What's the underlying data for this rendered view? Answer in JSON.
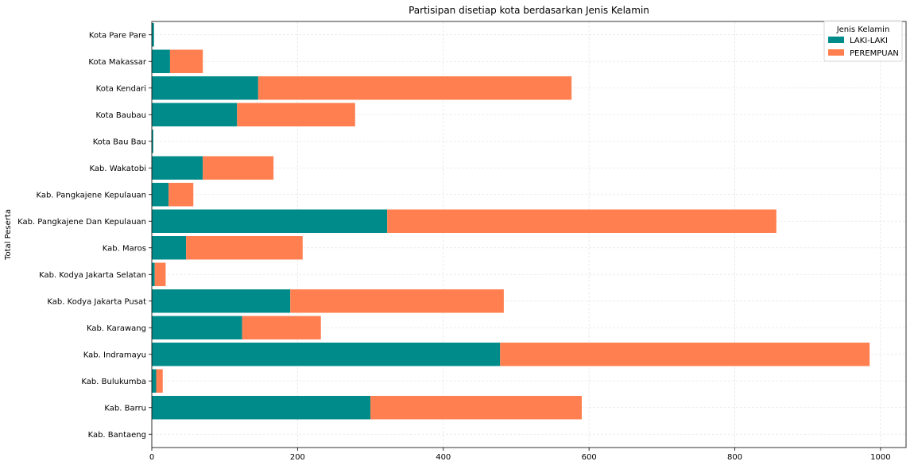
{
  "chart_data": {
    "type": "bar",
    "orientation": "horizontal",
    "stacked": true,
    "title": "Partisipan disetiap kota berdasarkan Jenis Kelamin",
    "xlabel": "",
    "ylabel": "Total Peserta",
    "xlim": [
      0,
      1035
    ],
    "xticks": [
      "0",
      "200",
      "400",
      "600",
      "800",
      "1000"
    ],
    "grid": true,
    "legend": {
      "title": "Jenis Kelamin",
      "position": "top-right"
    },
    "categories": [
      "Kab. Bantaeng",
      "Kab. Barru",
      "Kab. Bulukumba",
      "Kab. Indramayu",
      "Kab. Karawang",
      "Kab. Kodya Jakarta Pusat",
      "Kab. Kodya Jakarta Selatan",
      "Kab. Maros",
      "Kab. Pangkajene Dan Kepulauan",
      "Kab. Pangkajene Kepulauan",
      "Kab. Wakatobi",
      "Kota Bau Bau",
      "Kota Baubau",
      "Kota Kendari",
      "Kota Makassar",
      "Kota Pare Pare"
    ],
    "series": [
      {
        "name": "LAKI-LAKI",
        "color": "#008b8b",
        "values": [
          0,
          300,
          6,
          478,
          124,
          190,
          4,
          47,
          323,
          23,
          70,
          2,
          117,
          146,
          25,
          3
        ]
      },
      {
        "name": "PEREMPUAN",
        "color": "#ff7f50",
        "values": [
          0,
          290,
          9,
          507,
          108,
          293,
          15,
          160,
          534,
          34,
          97,
          0,
          162,
          430,
          45,
          0
        ]
      }
    ]
  }
}
